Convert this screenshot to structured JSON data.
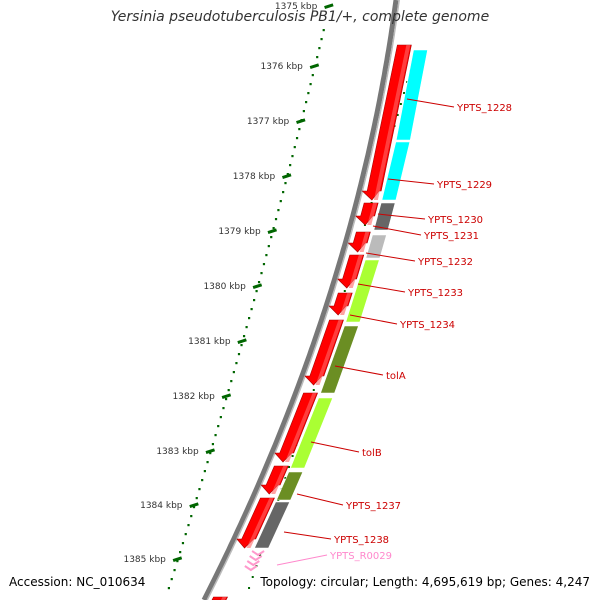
{
  "title": "Yersinia pseudotuberculosis PB1/+, complete genome",
  "footer": {
    "accession": "Accession: NC_010634",
    "summary": "Topology: circular; Length: 4,695,619 bp; Genes: 4,247"
  },
  "scale": {
    "ticks": [
      "1375 kbp",
      "1376 kbp",
      "1377 kbp",
      "1378 kbp",
      "1379 kbp",
      "1380 kbp",
      "1381 kbp",
      "1382 kbp",
      "1383 kbp",
      "1384 kbp",
      "1385 kbp"
    ]
  },
  "colors": {
    "forward_genes": "#ff0000",
    "cyan_genes": "#00ffff",
    "light_green_genes": "#aaff33",
    "olive_genes": "#6b8e23",
    "dark_gray_genes": "#666666",
    "light_gray_genes": "#bbbbbb",
    "rna_genes": "#ff99cc",
    "label_red": "#cc0000",
    "label_pink": "#ff88cc",
    "scale_green": "#006600"
  },
  "gene_labels": [
    {
      "name": "YPTS_1228",
      "color": "#cc0000"
    },
    {
      "name": "YPTS_1229",
      "color": "#cc0000"
    },
    {
      "name": "YPTS_1230",
      "color": "#cc0000"
    },
    {
      "name": "YPTS_1231",
      "color": "#cc0000"
    },
    {
      "name": "YPTS_1232",
      "color": "#cc0000"
    },
    {
      "name": "YPTS_1233",
      "color": "#cc0000"
    },
    {
      "name": "YPTS_1234",
      "color": "#cc0000"
    },
    {
      "name": "tolA",
      "color": "#cc0000"
    },
    {
      "name": "tolB",
      "color": "#cc0000"
    },
    {
      "name": "YPTS_1237",
      "color": "#cc0000"
    },
    {
      "name": "YPTS_1238",
      "color": "#cc0000"
    },
    {
      "name": "YPTS_R0029",
      "color": "#ff88cc"
    }
  ]
}
